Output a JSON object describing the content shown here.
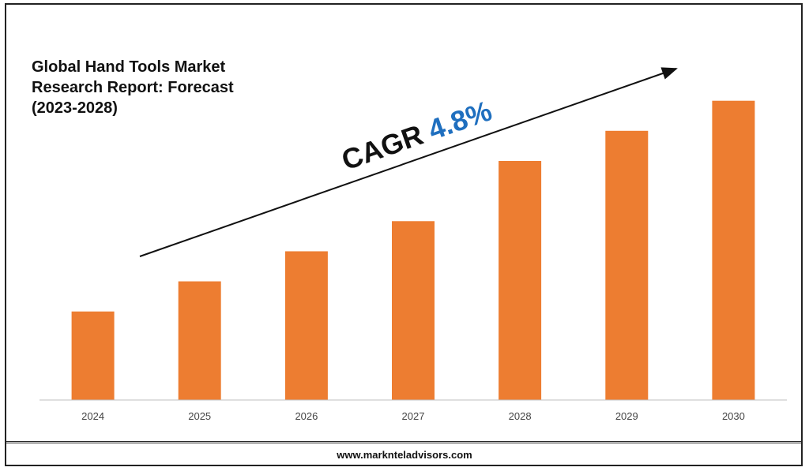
{
  "chart_data": {
    "type": "bar",
    "title_lines": [
      "Global Hand Tools Market",
      "Research Report: Forecast",
      "(2023-2028)"
    ],
    "categories": [
      "2024",
      "2025",
      "2026",
      "2027",
      "2028",
      "2029",
      "2030"
    ],
    "values": [
      1.0,
      1.34,
      1.68,
      2.02,
      2.7,
      3.04,
      3.38
    ],
    "ylim": [
      0,
      3.6
    ],
    "grid": false,
    "bar_color": "#ED7D31",
    "annotation": {
      "label": "CAGR",
      "value": "4.8%",
      "label_color": "#111111",
      "value_color": "#1F6FBF"
    }
  },
  "footer": {
    "website": "www.marknteladvisors.com"
  }
}
